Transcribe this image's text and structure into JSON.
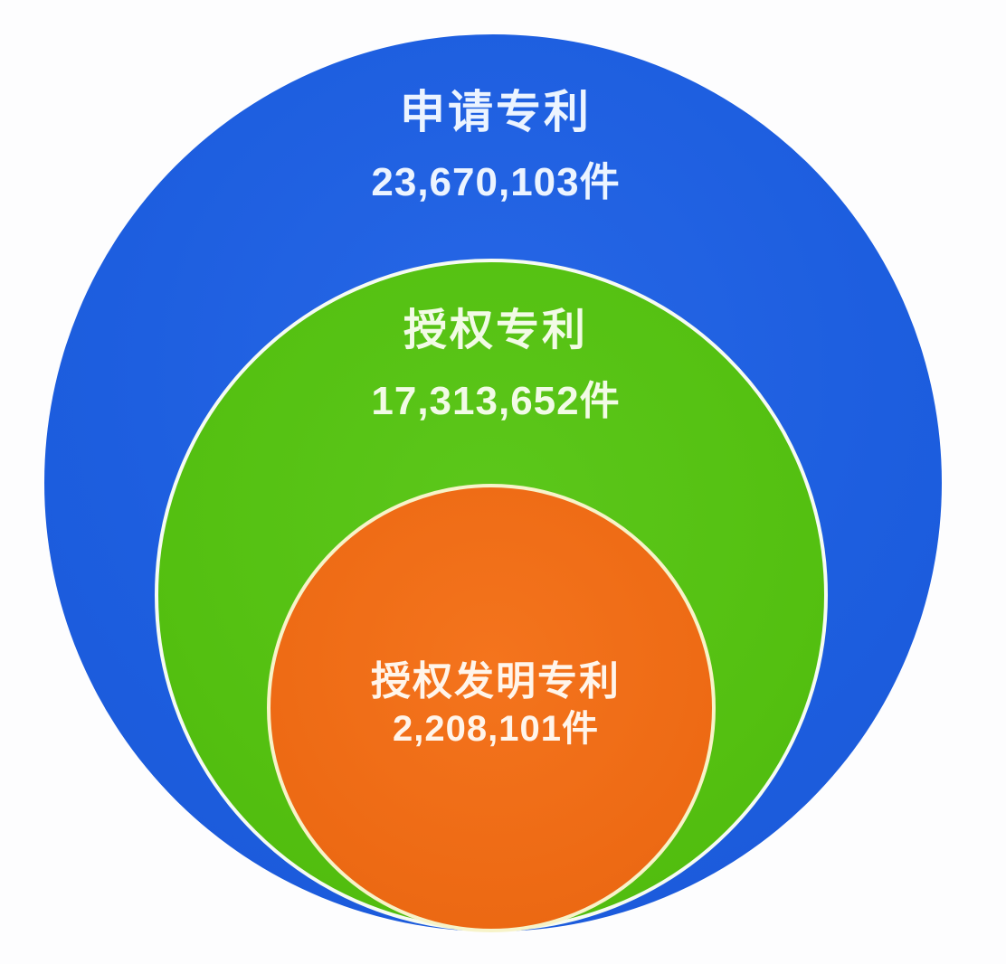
{
  "chart_data": {
    "type": "nested-circles",
    "description": "Proportional nested circle chart of patent counts, circles tangent at bottom",
    "background_color": "#fdfdfe",
    "series": [
      {
        "name": "申请专利",
        "value": 23670103,
        "display_value": "23,670,103件",
        "color": "#1d5edf",
        "text_color": "#ecf4ff",
        "ring": "outer"
      },
      {
        "name": "授权专利",
        "value": 17313652,
        "display_value": "17,313,652件",
        "color": "#54c011",
        "stroke_color": "#f6fbf2",
        "text_color": "#f2fbe6",
        "ring": "middle"
      },
      {
        "name": "授权发明专利",
        "value": 2208101,
        "display_value": "2,208,101件",
        "color": "#ee6b15",
        "stroke_color": "#f7f3c9",
        "text_color": "#fff5eb",
        "ring": "inner"
      }
    ]
  }
}
